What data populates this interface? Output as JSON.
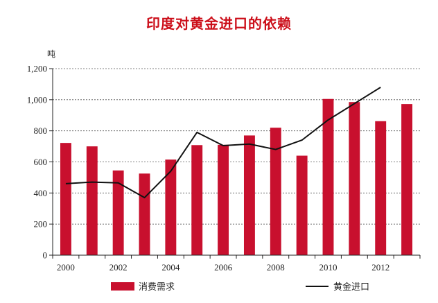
{
  "chart_data": {
    "type": "bar",
    "title": "印度对黄金进口的依赖",
    "ylabel": "吨",
    "ylim": [
      0,
      1200
    ],
    "yticks": [
      0,
      200,
      400,
      600,
      800,
      1000,
      1200
    ],
    "ytick_labels": [
      "0",
      "200",
      "400",
      "600",
      "800",
      "1,000",
      "1,200"
    ],
    "x": [
      2000,
      2001,
      2002,
      2003,
      2004,
      2005,
      2006,
      2007,
      2008,
      2009,
      2010,
      2011,
      2012,
      2013
    ],
    "xtick_labels": [
      "2000",
      "2002",
      "2004",
      "2006",
      "2008",
      "2010",
      "2012"
    ],
    "grid": "horizontal dashed",
    "legend_position": "bottom",
    "series": [
      {
        "name": "消费需求",
        "kind": "bar",
        "color": "#c8102e",
        "values": [
          722,
          700,
          545,
          525,
          615,
          708,
          710,
          770,
          820,
          640,
          1005,
          985,
          862,
          972
        ]
      },
      {
        "name": "黄金进口",
        "kind": "line",
        "color": "#111111",
        "values": [
          460,
          470,
          465,
          370,
          540,
          790,
          705,
          715,
          680,
          740,
          870,
          975,
          1080,
          null
        ]
      }
    ]
  }
}
